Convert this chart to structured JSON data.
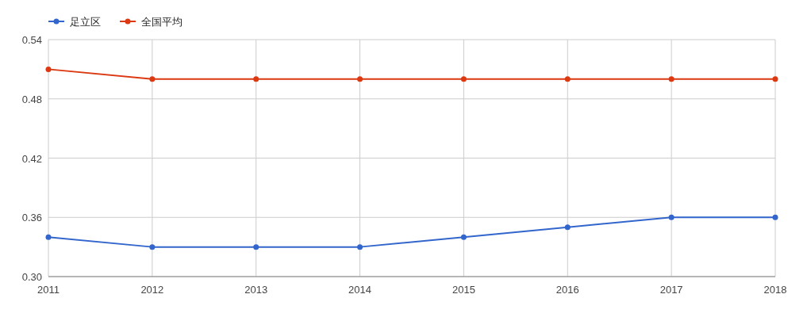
{
  "chart_data": {
    "type": "line",
    "x": [
      2011,
      2012,
      2013,
      2014,
      2015,
      2016,
      2017,
      2018
    ],
    "series": [
      {
        "name": "足立区",
        "color": "#3366cc",
        "values": [
          0.34,
          0.33,
          0.33,
          0.33,
          0.34,
          0.35,
          0.36,
          0.36
        ]
      },
      {
        "name": "全国平均",
        "color": "#dc3912",
        "values": [
          0.51,
          0.5,
          0.5,
          0.5,
          0.5,
          0.5,
          0.5,
          0.5
        ]
      }
    ],
    "xlim": [
      2011,
      2018
    ],
    "xticks": [
      2011,
      2012,
      2013,
      2014,
      2015,
      2016,
      2017,
      2018
    ],
    "ylim": [
      0.3,
      0.54
    ],
    "yticks": [
      {
        "value": 0.3,
        "label": "0.30"
      },
      {
        "value": 0.36,
        "label": "0.36"
      },
      {
        "value": 0.42,
        "label": "0.42"
      },
      {
        "value": 0.48,
        "label": "0.48"
      },
      {
        "value": 0.54,
        "label": "0.54"
      }
    ],
    "grid": true,
    "legend": "top left",
    "marker": "circle",
    "line_style": "solid"
  }
}
